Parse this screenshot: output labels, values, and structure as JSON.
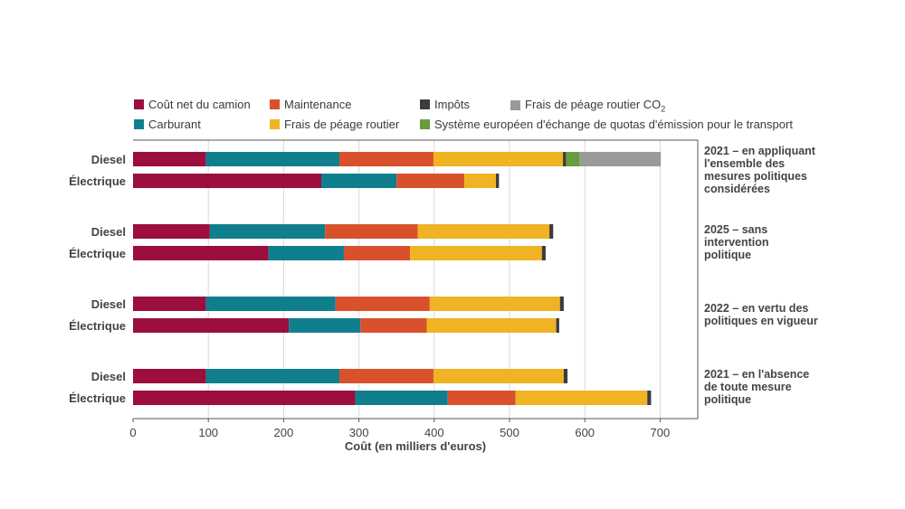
{
  "chart_data": {
    "type": "bar",
    "orientation": "horizontal",
    "stacked": true,
    "xlabel": "Coût (en milliers d'euros)",
    "xlim": [
      0,
      750
    ],
    "xticks": [
      0,
      100,
      200,
      300,
      400,
      500,
      600,
      700
    ],
    "grid": "vertical",
    "legend_position": "top",
    "series": [
      {
        "name": "Coût net du camion",
        "color": "#9b0e3e"
      },
      {
        "name": "Carburant",
        "color": "#0f7f8e"
      },
      {
        "name": "Maintenance",
        "color": "#d9512c"
      },
      {
        "name": "Frais de péage routier",
        "color": "#f0b323"
      },
      {
        "name": "Impôts",
        "color": "#3c3c3c"
      },
      {
        "name": "Système européen d'échange de quotas d'émission pour le transport",
        "color": "#6a9b3c"
      },
      {
        "name": "Frais de péage routier CO₂",
        "color": "#9a9a9a"
      }
    ],
    "groups": [
      {
        "scenario": [
          "2021 – en appliquant",
          "l'ensemble des",
          "mesures politiques",
          "considérées"
        ],
        "bars": [
          {
            "label": "Diesel",
            "values": [
              97,
              177,
              125,
              172,
              4,
              18,
              108
            ]
          },
          {
            "label": "Électrique",
            "values": [
              250,
              100,
              90,
              42,
              4,
              0,
              0
            ]
          }
        ]
      },
      {
        "scenario": [
          "2025 – sans",
          "intervention",
          "politique"
        ],
        "bars": [
          {
            "label": "Diesel",
            "values": [
              102,
              153,
              123,
              175,
              5,
              0,
              0
            ]
          },
          {
            "label": "Électrique",
            "values": [
              180,
              100,
              88,
              175,
              5,
              0,
              0
            ]
          }
        ]
      },
      {
        "scenario": [
          "2022 – en vertu des",
          "politiques en vigueur"
        ],
        "bars": [
          {
            "label": "Diesel",
            "values": [
              97,
              172,
              125,
              173,
              5,
              0,
              0
            ]
          },
          {
            "label": "Électrique",
            "values": [
              207,
              95,
              88,
              172,
              4,
              0,
              0
            ]
          }
        ]
      },
      {
        "scenario": [
          "2021 – en l'absence",
          "de toute mesure",
          "politique"
        ],
        "bars": [
          {
            "label": "Diesel",
            "values": [
              97,
              177,
              125,
              173,
              5,
              0,
              0
            ]
          },
          {
            "label": "Électrique",
            "values": [
              295,
              123,
              90,
              175,
              5,
              0,
              0
            ]
          }
        ]
      }
    ]
  },
  "legend": {
    "row1": [
      {
        "series": 0,
        "label": "Coût net du camion"
      },
      {
        "series": 2,
        "label": "Maintenance"
      },
      {
        "series": 4,
        "label": "Impôts"
      },
      {
        "series": 6,
        "label_main": "Frais de péage routier CO",
        "label_sub": "2"
      }
    ],
    "row2": [
      {
        "series": 1,
        "label": "Carburant"
      },
      {
        "series": 3,
        "label": "Frais de péage routier"
      },
      {
        "series": 5,
        "label": "Système européen d'échange de quotas d'émission pour le transport"
      }
    ]
  }
}
